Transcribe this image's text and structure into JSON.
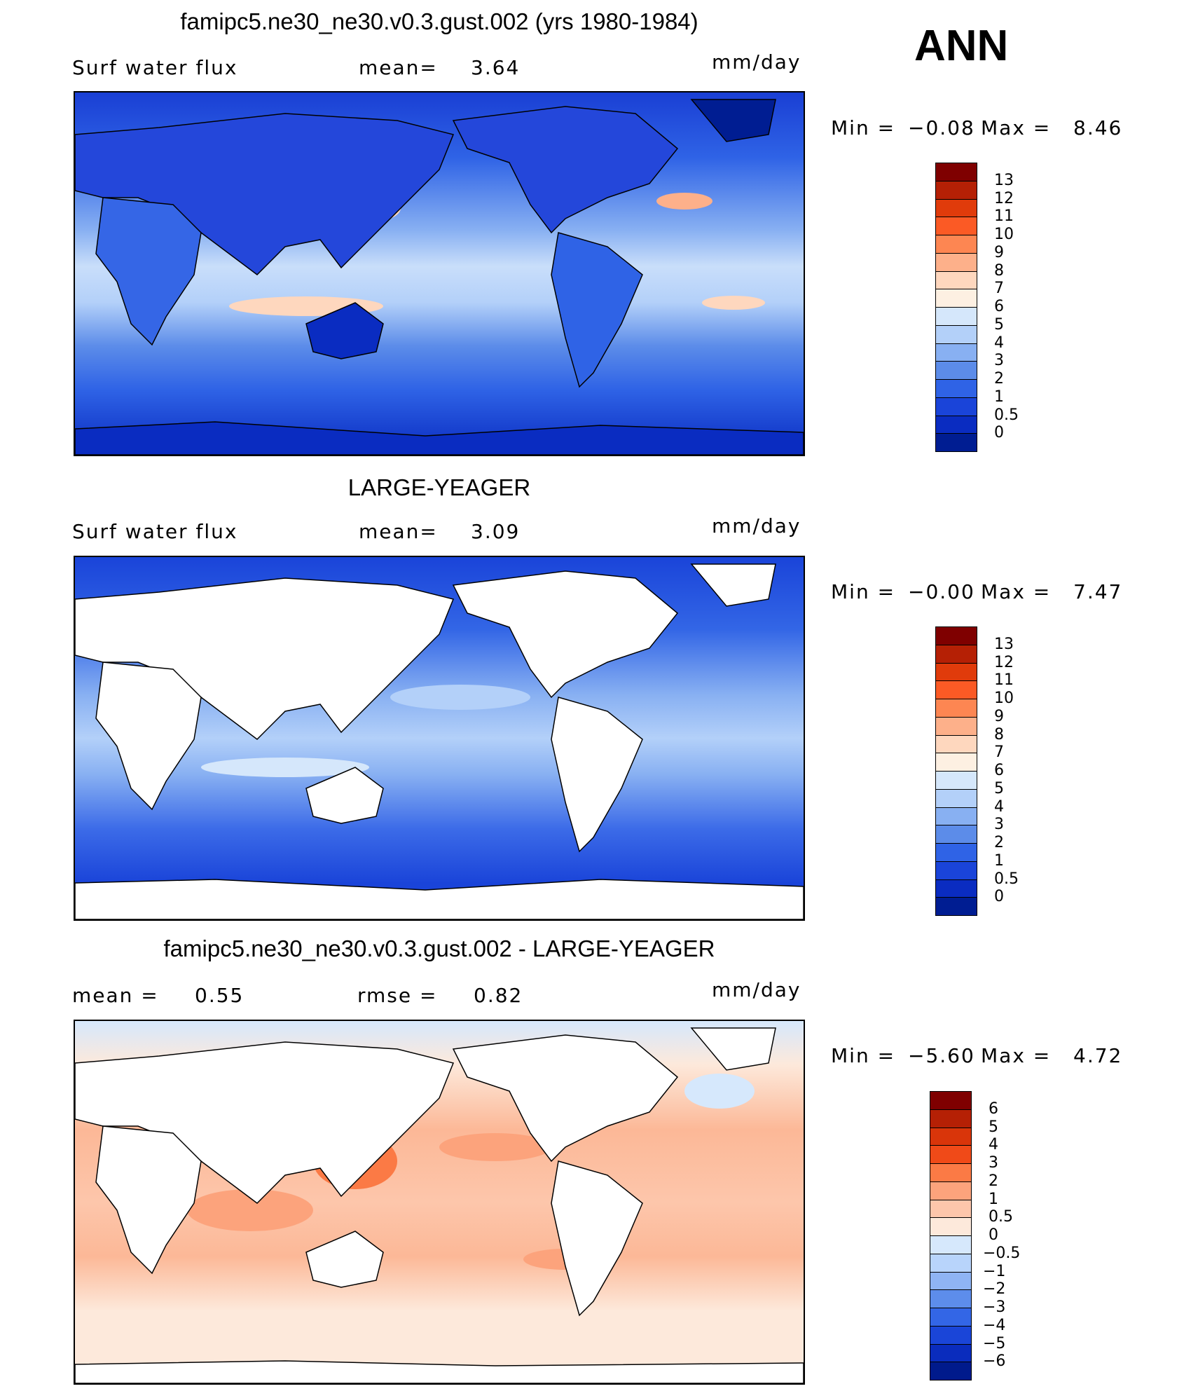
{
  "season": "ANN",
  "panels": [
    {
      "title": "famipc5.ne30_ne30.v0.3.gust.002 (yrs 1980-1984)",
      "left_label": "Surf  water  flux",
      "mid_label": "mean=",
      "mid_value": "3.64",
      "units": "mm/day",
      "min_label": "Min  =",
      "min_value": "−0.08",
      "max_label": "Max  =",
      "max_value": "8.46",
      "colorbar": {
        "labels": [
          "13",
          "12",
          "11",
          "10",
          "9",
          "8",
          "7",
          "6",
          "5",
          "4",
          "3",
          "2",
          "1",
          "0.5",
          "0"
        ],
        "colors": [
          "#7f0000",
          "#b52005",
          "#e03b0b",
          "#fb5a25",
          "#fd8652",
          "#fdb08a",
          "#fed7be",
          "#fdf0e2",
          "#d5e7fb",
          "#b3d0f9",
          "#88b0f2",
          "#5c8ce9",
          "#2f63e6",
          "#1a44d9",
          "#0a2cc1",
          "#001d92"
        ]
      },
      "map": {
        "ocean": "#2b5de6",
        "land": "#1e40d6",
        "has_land_fill": true,
        "style": "model"
      }
    },
    {
      "title": "LARGE-YEAGER",
      "left_label": "Surf  water  flux",
      "mid_label": "mean=",
      "mid_value": "3.09",
      "units": "mm/day",
      "min_label": "Min  =",
      "min_value": "−0.00",
      "max_label": "Max  =",
      "max_value": "7.47",
      "colorbar": {
        "labels": [
          "13",
          "12",
          "11",
          "10",
          "9",
          "8",
          "7",
          "6",
          "5",
          "4",
          "3",
          "2",
          "1",
          "0.5",
          "0"
        ],
        "colors": [
          "#7f0000",
          "#b52005",
          "#e03b0b",
          "#fb5a25",
          "#fd8652",
          "#fdb08a",
          "#fed7be",
          "#fdf0e2",
          "#d5e7fb",
          "#b3d0f9",
          "#88b0f2",
          "#5c8ce9",
          "#2f63e6",
          "#1a44d9",
          "#0a2cc1",
          "#001d92"
        ]
      },
      "map": {
        "ocean": "#3c6be8",
        "land": "#ffffff",
        "has_land_fill": false,
        "style": "obs"
      }
    },
    {
      "title": "famipc5.ne30_ne30.v0.3.gust.002 - LARGE-YEAGER",
      "left_label": "mean  =",
      "left_value": "0.55",
      "mid_label": "rmse  =",
      "mid_value": "0.82",
      "units": "mm/day",
      "min_label": "Min  =",
      "min_value": "−5.60",
      "max_label": "Max  =",
      "max_value": "4.72",
      "colorbar": {
        "labels": [
          "6",
          "5",
          "4",
          "3",
          "2",
          "1",
          "0.5",
          "0",
          "−0.5",
          "−1",
          "−2",
          "−3",
          "−4",
          "−5",
          "−6"
        ],
        "colors": [
          "#7f0000",
          "#b52005",
          "#d9350a",
          "#f04a18",
          "#fb7a45",
          "#fca37c",
          "#fdc6ab",
          "#fde9db",
          "#d6e8fc",
          "#b8d4fb",
          "#8fb4f4",
          "#5d8deb",
          "#3366e6",
          "#1a45d8",
          "#0a2cbd",
          "#001a8c"
        ]
      },
      "map": {
        "ocean": "#fbd2bd",
        "land": "#ffffff",
        "has_land_fill": false,
        "style": "diff"
      }
    }
  ]
}
